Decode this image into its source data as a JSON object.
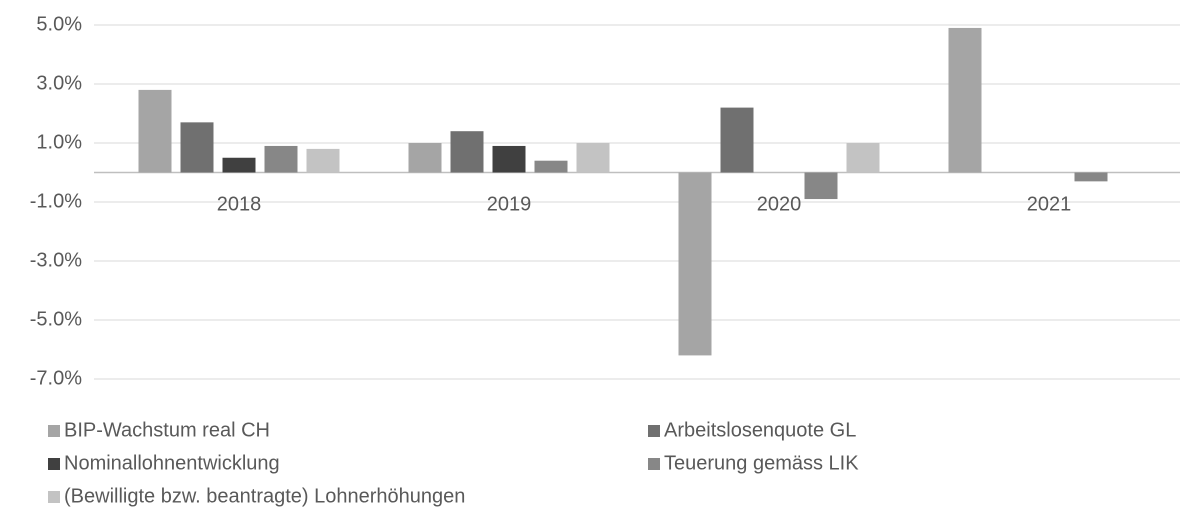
{
  "chart_data": {
    "type": "bar",
    "categories": [
      "2018",
      "2019",
      "2020",
      "2021"
    ],
    "series": [
      {
        "name": "BIP-Wachstum real CH",
        "color": "#a5a5a5",
        "values": [
          2.8,
          1.0,
          -6.2,
          4.9
        ]
      },
      {
        "name": "Arbeitslosenquote GL",
        "color": "#707070",
        "values": [
          1.7,
          1.4,
          2.2,
          null
        ]
      },
      {
        "name": "Nominallohnentwicklung",
        "color": "#404040",
        "values": [
          0.5,
          0.9,
          null,
          null
        ]
      },
      {
        "name": "Teuerung gemäss LIK",
        "color": "#878787",
        "values": [
          0.9,
          0.4,
          -0.9,
          -0.3
        ]
      },
      {
        "name": "(Bewilligte bzw. beantragte) Lohnerhöhungen",
        "color": "#c3c3c3",
        "values": [
          0.8,
          1.0,
          1.0,
          null
        ]
      }
    ],
    "ylim": [
      -7,
      5
    ],
    "yticks": [
      {
        "value": 5,
        "label": "5.0%"
      },
      {
        "value": 3,
        "label": "3.0%"
      },
      {
        "value": 1,
        "label": "1.0%"
      },
      {
        "value": -1,
        "label": "-1.0%"
      },
      {
        "value": -3,
        "label": "-3.0%"
      },
      {
        "value": -5,
        "label": "-5.0%"
      },
      {
        "value": -7,
        "label": "-7.0%"
      }
    ],
    "grid": true,
    "legend": "bottom"
  }
}
